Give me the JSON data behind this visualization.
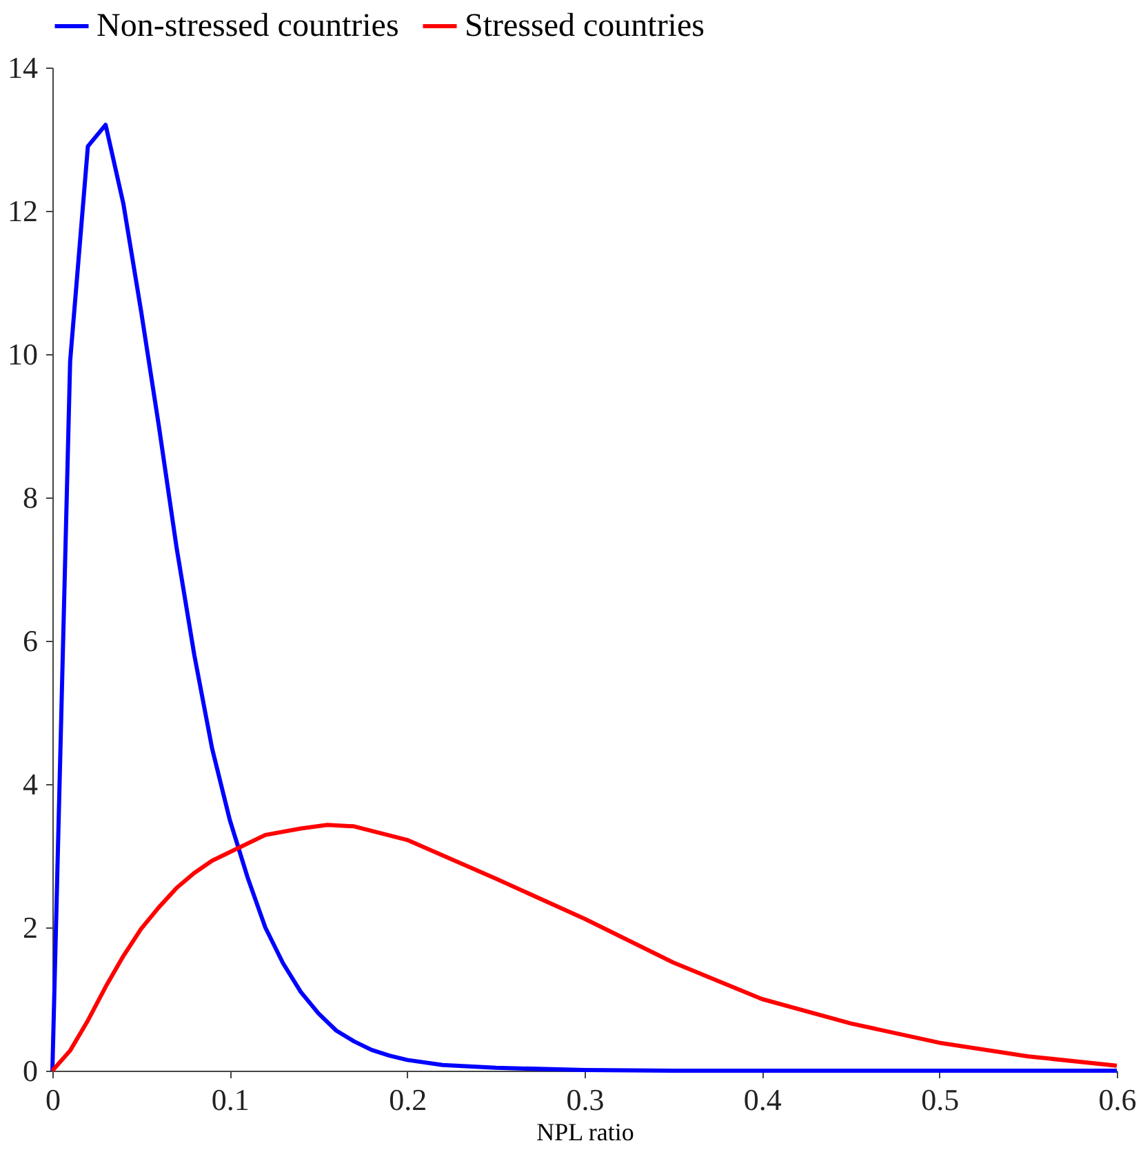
{
  "chart_data": {
    "type": "line",
    "xlabel": "NPL ratio",
    "xlim": [
      0,
      0.6
    ],
    "xticks": [
      0,
      0.1,
      0.2,
      0.3,
      0.4,
      0.5,
      0.6
    ],
    "ylim": [
      0,
      14
    ],
    "yticks": [
      0,
      2,
      4,
      6,
      8,
      10,
      12,
      14
    ],
    "grid": false,
    "legend": "top",
    "marker": "none",
    "line_style": "solid",
    "series": [
      {
        "name": "Non-stressed countries",
        "color": "#0000ff",
        "x": [
          0,
          0.01,
          0.02,
          0.03,
          0.04,
          0.05,
          0.06,
          0.07,
          0.08,
          0.09,
          0.1,
          0.11,
          0.12,
          0.13,
          0.14,
          0.15,
          0.16,
          0.17,
          0.18,
          0.19,
          0.2,
          0.22,
          0.25,
          0.3,
          0.35,
          0.6
        ],
        "values": [
          0,
          9.9,
          12.9,
          13.2,
          12.1,
          10.6,
          9.0,
          7.3,
          5.8,
          4.5,
          3.5,
          2.7,
          2.0,
          1.5,
          1.1,
          0.8,
          0.56,
          0.41,
          0.29,
          0.21,
          0.15,
          0.08,
          0.04,
          0.01,
          0,
          0
        ]
      },
      {
        "name": "Stressed countries",
        "color": "#ff0000",
        "x": [
          0,
          0.01,
          0.02,
          0.03,
          0.04,
          0.05,
          0.06,
          0.07,
          0.08,
          0.09,
          0.1,
          0.12,
          0.14,
          0.155,
          0.17,
          0.2,
          0.25,
          0.3,
          0.35,
          0.4,
          0.45,
          0.5,
          0.55,
          0.6
        ],
        "values": [
          0,
          0.28,
          0.7,
          1.17,
          1.6,
          1.98,
          2.28,
          2.55,
          2.76,
          2.93,
          3.05,
          3.29,
          3.38,
          3.43,
          3.41,
          3.22,
          2.68,
          2.12,
          1.51,
          1.0,
          0.66,
          0.39,
          0.2,
          0.07
        ]
      }
    ]
  }
}
